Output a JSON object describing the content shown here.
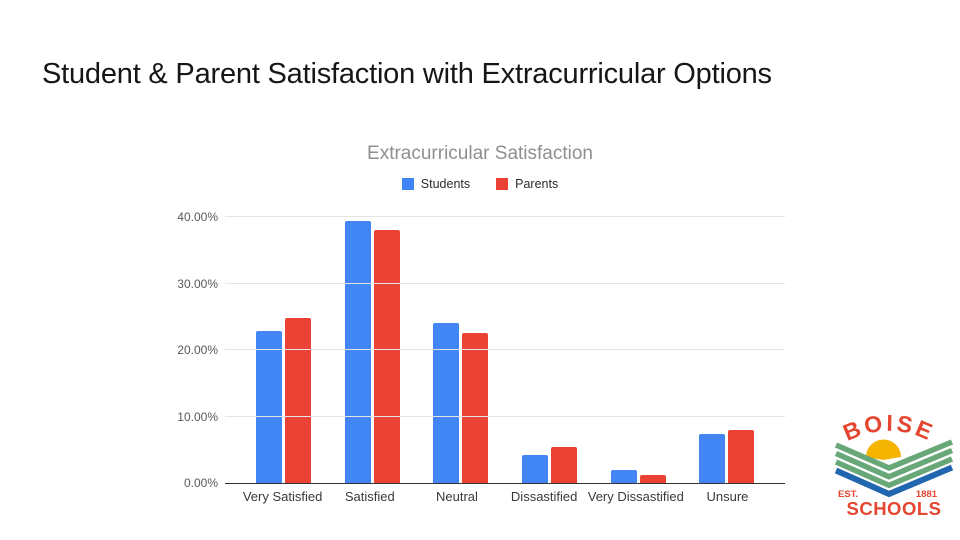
{
  "slide": {
    "title": "Student & Parent Satisfaction with Extracurricular Options"
  },
  "chart_data": {
    "type": "bar",
    "title": "Extracurricular Satisfaction",
    "categories": [
      "Very Satisfied",
      "Satisfied",
      "Neutral",
      "Dissastified",
      "Very Dissastified",
      "Unsure"
    ],
    "series": [
      {
        "name": "Students",
        "color": "#4285F4",
        "values": [
          22.9,
          39.4,
          24.1,
          4.2,
          2.0,
          7.4
        ]
      },
      {
        "name": "Parents",
        "color": "#EA4335",
        "values": [
          24.8,
          38.0,
          22.6,
          5.4,
          1.2,
          7.9
        ]
      }
    ],
    "xlabel": "",
    "ylabel": "",
    "ylim": [
      0,
      40
    ],
    "yticks": [
      "0.00%",
      "10.00%",
      "20.00%",
      "30.00%",
      "40.00%"
    ],
    "grid": true,
    "legend_position": "top"
  },
  "logo": {
    "name": "Boise Schools",
    "arc_text": "BOISE",
    "est_label": "EST.",
    "year_label": "1881",
    "bottom_text": "SCHOOLS",
    "colors": {
      "red": "#E4462F",
      "yellow": "#F4B400",
      "green": "#68A878",
      "blue": "#2166AE"
    }
  }
}
